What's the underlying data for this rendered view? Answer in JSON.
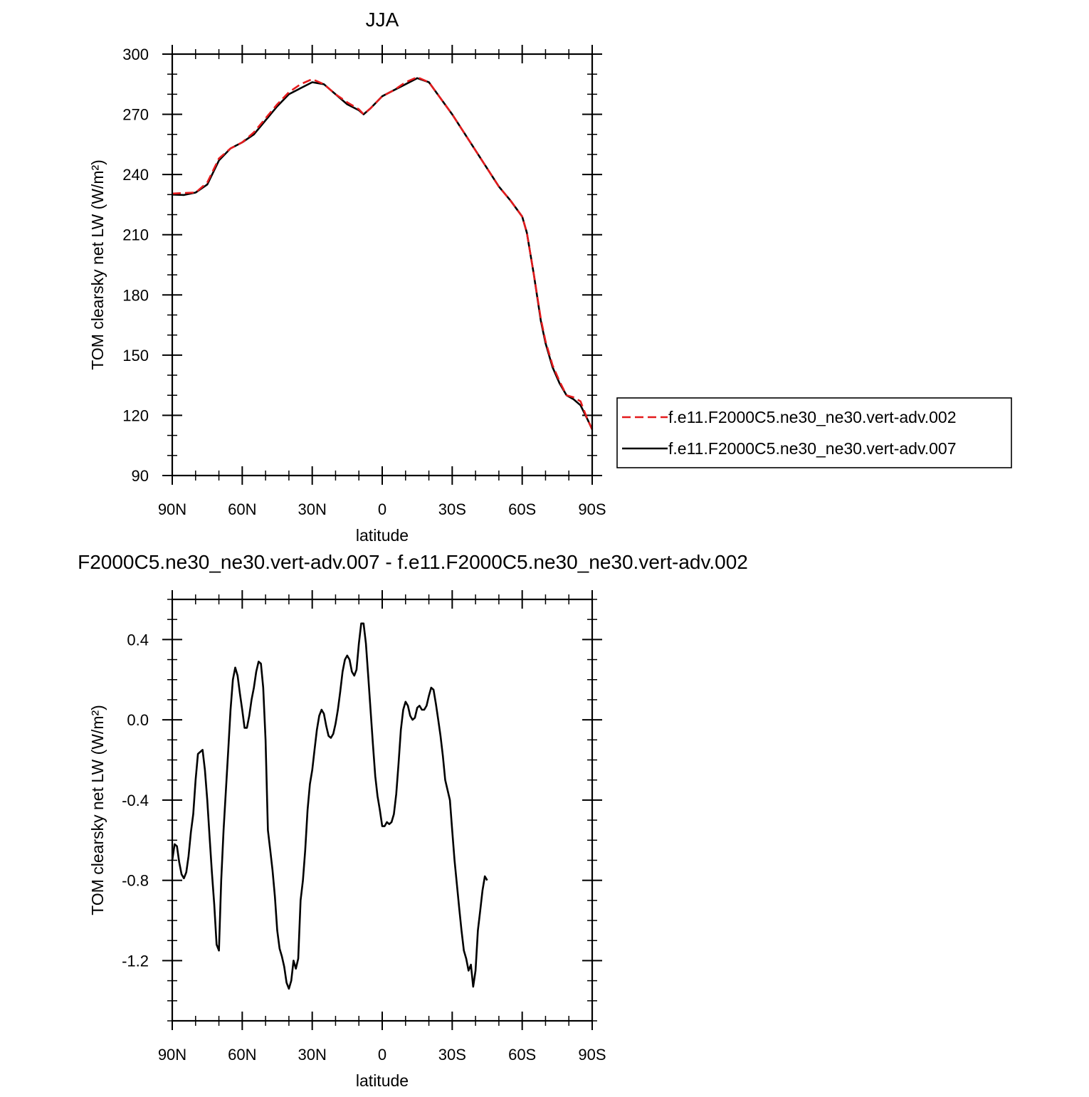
{
  "chart_data": [
    {
      "type": "line",
      "title": "JJA",
      "xlabel": "latitude",
      "ylabel": "TOM clearsky net LW (W/m²)",
      "xlim": [
        90,
        -90
      ],
      "ylim": [
        90,
        300
      ],
      "x_ticks": [
        {
          "value": 90,
          "label": "90N"
        },
        {
          "value": 60,
          "label": "60N"
        },
        {
          "value": 30,
          "label": "30N"
        },
        {
          "value": 0,
          "label": "0"
        },
        {
          "value": -30,
          "label": "30S"
        },
        {
          "value": -60,
          "label": "60S"
        },
        {
          "value": -90,
          "label": "90S"
        }
      ],
      "y_ticks": [
        {
          "value": 300,
          "label": "300"
        },
        {
          "value": 270,
          "label": "270"
        },
        {
          "value": 240,
          "label": "240"
        },
        {
          "value": 210,
          "label": "210"
        },
        {
          "value": 180,
          "label": "180"
        },
        {
          "value": 150,
          "label": "150"
        },
        {
          "value": 120,
          "label": "120"
        },
        {
          "value": 90,
          "label": "90"
        }
      ],
      "legend": "right",
      "series": [
        {
          "name": "f.e11.F2000C5.ne30_ne30.vert-adv.002",
          "color": "#e41a1c",
          "dash": "dashed",
          "points": [
            [
              90,
              230.5
            ],
            [
              85,
              230.8
            ],
            [
              80,
              231
            ],
            [
              75,
              236
            ],
            [
              70,
              248
            ],
            [
              65,
              253
            ],
            [
              60,
              256
            ],
            [
              55,
              261
            ],
            [
              50,
              268
            ],
            [
              45,
              275
            ],
            [
              40,
              281
            ],
            [
              35,
              285
            ],
            [
              30,
              287.5
            ],
            [
              25,
              285
            ],
            [
              20,
              280
            ],
            [
              15,
              276
            ],
            [
              10,
              272.5
            ],
            [
              8,
              270
            ],
            [
              5,
              273
            ],
            [
              0,
              279
            ],
            [
              -5,
              282
            ],
            [
              -10,
              286
            ],
            [
              -15,
              288.5
            ],
            [
              -20,
              286
            ],
            [
              -25,
              278
            ],
            [
              -30,
              270
            ],
            [
              -35,
              261
            ],
            [
              -40,
              252
            ],
            [
              -45,
              243
            ],
            [
              -50,
              234
            ],
            [
              -55,
              227
            ],
            [
              -60,
              219
            ],
            [
              -62,
              211
            ],
            [
              -65,
              190
            ],
            [
              -68,
              168
            ],
            [
              -70,
              157
            ],
            [
              -73,
              145
            ],
            [
              -76,
              137
            ],
            [
              -79,
              130
            ],
            [
              -82,
              129
            ],
            [
              -85,
              127
            ],
            [
              -88,
              118
            ],
            [
              -90,
              113
            ]
          ]
        },
        {
          "name": "f.e11.F2000C5.ne30_ne30.vert-adv.007",
          "color": "#000000",
          "dash": "solid",
          "points": [
            [
              90,
              230
            ],
            [
              85,
              229.8
            ],
            [
              80,
              231
            ],
            [
              75,
              235
            ],
            [
              70,
              247
            ],
            [
              65,
              253
            ],
            [
              60,
              256
            ],
            [
              55,
              260
            ],
            [
              50,
              267
            ],
            [
              45,
              274
            ],
            [
              40,
              280
            ],
            [
              35,
              283
            ],
            [
              30,
              286
            ],
            [
              25,
              285
            ],
            [
              20,
              280
            ],
            [
              15,
              275
            ],
            [
              10,
              272
            ],
            [
              8,
              270
            ],
            [
              5,
              273
            ],
            [
              0,
              279
            ],
            [
              -5,
              282
            ],
            [
              -10,
              285
            ],
            [
              -15,
              288
            ],
            [
              -20,
              286
            ],
            [
              -25,
              278
            ],
            [
              -30,
              270
            ],
            [
              -35,
              261
            ],
            [
              -40,
              252
            ],
            [
              -45,
              243
            ],
            [
              -50,
              234
            ],
            [
              -55,
              227
            ],
            [
              -60,
              219
            ],
            [
              -62,
              211
            ],
            [
              -65,
              190
            ],
            [
              -68,
              167
            ],
            [
              -70,
              156
            ],
            [
              -73,
              144
            ],
            [
              -76,
              136
            ],
            [
              -79,
              130
            ],
            [
              -82,
              128
            ],
            [
              -85,
              125
            ],
            [
              -88,
              118
            ],
            [
              -90,
              113
            ]
          ]
        }
      ]
    },
    {
      "type": "line",
      "title": "F2000C5.ne30_ne30.vert-adv.007 - f.e11.F2000C5.ne30_ne30.vert-adv.002",
      "xlabel": "latitude",
      "ylabel": "TOM clearsky net LW (W/m²)",
      "xlim": [
        90,
        -90
      ],
      "ylim": [
        -1.5,
        0.6
      ],
      "x_ticks": [
        {
          "value": 90,
          "label": "90N"
        },
        {
          "value": 60,
          "label": "60N"
        },
        {
          "value": 30,
          "label": "30N"
        },
        {
          "value": 0,
          "label": "0"
        },
        {
          "value": -30,
          "label": "30S"
        },
        {
          "value": -60,
          "label": "60S"
        },
        {
          "value": -90,
          "label": "90S"
        }
      ],
      "y_ticks": [
        {
          "value": 0.4,
          "label": "0.4"
        },
        {
          "value": 0.0,
          "label": "0.0"
        },
        {
          "value": -0.4,
          "label": "-0.4"
        },
        {
          "value": -0.8,
          "label": "-0.8"
        },
        {
          "value": -1.2,
          "label": "-1.2"
        }
      ],
      "series": [
        {
          "color": "#000000",
          "dash": "solid",
          "points": [
            [
              90,
              -0.7
            ],
            [
              89,
              -0.62
            ],
            [
              88,
              -0.63
            ],
            [
              87,
              -0.71
            ],
            [
              86,
              -0.77
            ],
            [
              85,
              -0.79
            ],
            [
              84,
              -0.76
            ],
            [
              83,
              -0.68
            ],
            [
              82,
              -0.56
            ],
            [
              81,
              -0.47
            ],
            [
              80,
              -0.3
            ],
            [
              79,
              -0.17
            ],
            [
              78,
              -0.16
            ],
            [
              77,
              -0.15
            ],
            [
              76,
              -0.25
            ],
            [
              75,
              -0.4
            ],
            [
              74,
              -0.58
            ],
            [
              73,
              -0.76
            ],
            [
              72,
              -0.92
            ],
            [
              71,
              -1.12
            ],
            [
              70,
              -1.15
            ],
            [
              69,
              -0.8
            ],
            [
              68,
              -0.55
            ],
            [
              67,
              -0.35
            ],
            [
              66,
              -0.15
            ],
            [
              65,
              0.05
            ],
            [
              64,
              0.2
            ],
            [
              63,
              0.26
            ],
            [
              62,
              0.22
            ],
            [
              61,
              0.13
            ],
            [
              60,
              0.05
            ],
            [
              59,
              -0.04
            ],
            [
              58,
              -0.04
            ],
            [
              57,
              0.02
            ],
            [
              56,
              0.1
            ],
            [
              55,
              0.16
            ],
            [
              54,
              0.24
            ],
            [
              53,
              0.29
            ],
            [
              52,
              0.28
            ],
            [
              51,
              0.16
            ],
            [
              50,
              -0.1
            ],
            [
              49,
              -0.55
            ],
            [
              48,
              -0.65
            ],
            [
              47,
              -0.75
            ],
            [
              46,
              -0.88
            ],
            [
              45,
              -1.05
            ],
            [
              44,
              -1.14
            ],
            [
              43,
              -1.18
            ],
            [
              42,
              -1.23
            ],
            [
              41,
              -1.31
            ],
            [
              40,
              -1.34
            ],
            [
              39,
              -1.3
            ],
            [
              38,
              -1.2
            ],
            [
              37,
              -1.24
            ],
            [
              36,
              -1.19
            ],
            [
              35,
              -0.9
            ],
            [
              34,
              -0.8
            ],
            [
              33,
              -0.65
            ],
            [
              32,
              -0.45
            ],
            [
              31,
              -0.32
            ],
            [
              30,
              -0.25
            ],
            [
              29,
              -0.15
            ],
            [
              28,
              -0.05
            ],
            [
              27,
              0.02
            ],
            [
              26,
              0.05
            ],
            [
              25,
              0.03
            ],
            [
              24,
              -0.03
            ],
            [
              23,
              -0.08
            ],
            [
              22,
              -0.09
            ],
            [
              21,
              -0.07
            ],
            [
              20,
              -0.02
            ],
            [
              19,
              0.05
            ],
            [
              18,
              0.14
            ],
            [
              17,
              0.24
            ],
            [
              16,
              0.3
            ],
            [
              15,
              0.32
            ],
            [
              14,
              0.3
            ],
            [
              13,
              0.24
            ],
            [
              12,
              0.22
            ],
            [
              11,
              0.25
            ],
            [
              10,
              0.38
            ],
            [
              9,
              0.48
            ],
            [
              8,
              0.48
            ],
            [
              7,
              0.38
            ],
            [
              6,
              0.22
            ],
            [
              5,
              0.05
            ],
            [
              4,
              -0.12
            ],
            [
              3,
              -0.28
            ],
            [
              2,
              -0.38
            ],
            [
              1,
              -0.45
            ],
            [
              0,
              -0.53
            ],
            [
              -1,
              -0.53
            ],
            [
              -2,
              -0.51
            ],
            [
              -3,
              -0.52
            ],
            [
              -4,
              -0.51
            ],
            [
              -5,
              -0.47
            ],
            [
              -6,
              -0.37
            ],
            [
              -7,
              -0.22
            ],
            [
              -8,
              -0.05
            ],
            [
              -9,
              0.05
            ],
            [
              -10,
              0.09
            ],
            [
              -11,
              0.07
            ],
            [
              -12,
              0.02
            ],
            [
              -13,
              0.0
            ],
            [
              -14,
              0.01
            ],
            [
              -15,
              0.06
            ],
            [
              -16,
              0.07
            ],
            [
              -17,
              0.05
            ],
            [
              -18,
              0.05
            ],
            [
              -19,
              0.07
            ],
            [
              -20,
              0.12
            ],
            [
              -21,
              0.16
            ],
            [
              -22,
              0.15
            ],
            [
              -23,
              0.08
            ],
            [
              -24,
              0.0
            ],
            [
              -25,
              -0.08
            ],
            [
              -26,
              -0.18
            ],
            [
              -27,
              -0.3
            ],
            [
              -28,
              -0.35
            ],
            [
              -29,
              -0.4
            ],
            [
              -30,
              -0.55
            ],
            [
              -31,
              -0.7
            ],
            [
              -32,
              -0.82
            ],
            [
              -33,
              -0.94
            ],
            [
              -34,
              -1.05
            ],
            [
              -35,
              -1.15
            ],
            [
              -36,
              -1.19
            ],
            [
              -37,
              -1.25
            ],
            [
              -38,
              -1.22
            ],
            [
              -39,
              -1.33
            ],
            [
              -40,
              -1.25
            ],
            [
              -41,
              -1.05
            ],
            [
              -42,
              -0.95
            ],
            [
              -43,
              -0.85
            ],
            [
              -44,
              -0.78
            ],
            [
              -45,
              -0.8
            ]
          ]
        }
      ]
    }
  ]
}
